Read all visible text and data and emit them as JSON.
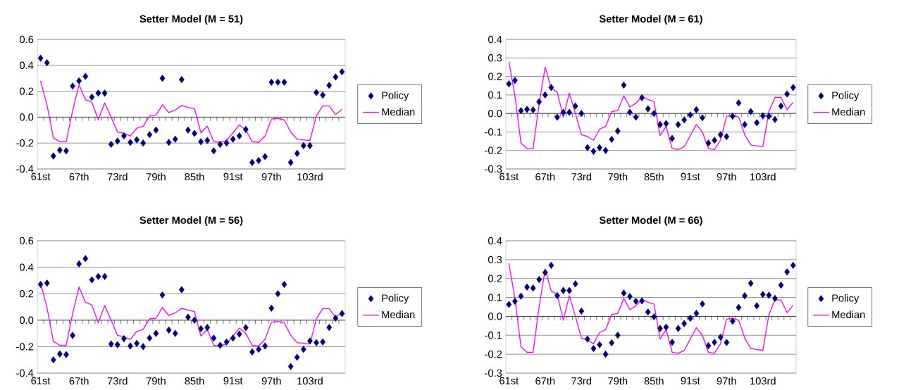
{
  "chart_data": [
    {
      "type": "line",
      "title": "Setter Model (M = 51)",
      "categories": [
        "61st",
        null,
        null,
        null,
        null,
        null,
        "67th",
        null,
        null,
        null,
        null,
        null,
        "73rd",
        null,
        null,
        null,
        null,
        null,
        "79th",
        null,
        null,
        null,
        null,
        null,
        "85th",
        null,
        null,
        null,
        null,
        null,
        "91st",
        null,
        null,
        null,
        null,
        null,
        "97th",
        null,
        null,
        null,
        null,
        null,
        "103rd",
        null,
        null,
        null,
        null,
        null
      ],
      "ylim": [
        -0.4,
        0.6
      ],
      "yticks": [
        {
          "value": -0.4,
          "label": "-0.4"
        },
        {
          "value": -0.2,
          "label": "-0.2"
        },
        {
          "value": 0,
          "label": "0.0"
        },
        {
          "value": 0.2,
          "label": "0.2"
        },
        {
          "value": 0.4,
          "label": "0.4"
        },
        {
          "value": 0.6,
          "label": "0.6"
        }
      ],
      "grid": "y",
      "legend": "right",
      "series": [
        {
          "name": "Policy",
          "type": "scatter",
          "marker": "diamond",
          "color": "#000080",
          "values": [
            0.455,
            0.42,
            -0.3,
            -0.255,
            -0.26,
            0.24,
            0.28,
            0.315,
            0.155,
            0.185,
            0.185,
            -0.21,
            -0.185,
            -0.145,
            -0.195,
            -0.175,
            -0.2,
            -0.135,
            -0.1,
            0.3,
            -0.195,
            -0.17,
            0.29,
            -0.1,
            -0.125,
            -0.19,
            -0.18,
            -0.26,
            -0.21,
            -0.2,
            -0.17,
            -0.145,
            -0.095,
            -0.35,
            -0.335,
            -0.305,
            0.27,
            0.27,
            0.27,
            -0.35,
            -0.28,
            -0.22,
            -0.22,
            0.19,
            0.17,
            0.245,
            0.31,
            0.35
          ]
        },
        {
          "name": "Median",
          "type": "line",
          "marker": "none",
          "color": "#ff00ff",
          "values": [
            0.28,
            0.095,
            -0.16,
            -0.19,
            -0.19,
            0.05,
            0.25,
            0.135,
            0.115,
            -0.02,
            0.11,
            0.0,
            -0.115,
            -0.125,
            -0.145,
            -0.085,
            -0.07,
            0.01,
            0.015,
            0.095,
            0.035,
            0.055,
            0.09,
            0.075,
            0.065,
            -0.12,
            -0.07,
            -0.19,
            -0.195,
            -0.18,
            -0.12,
            -0.06,
            -0.1,
            -0.19,
            -0.195,
            -0.145,
            -0.015,
            -0.01,
            -0.02,
            -0.115,
            -0.17,
            -0.175,
            -0.18,
            0.01,
            0.087,
            0.087,
            0.02,
            0.06
          ]
        }
      ]
    },
    {
      "type": "line",
      "title": "Setter Model (M = 61)",
      "categories": [
        "61st",
        null,
        null,
        null,
        null,
        null,
        "67th",
        null,
        null,
        null,
        null,
        null,
        "73rd",
        null,
        null,
        null,
        null,
        null,
        "79th",
        null,
        null,
        null,
        null,
        null,
        "85th",
        null,
        null,
        null,
        null,
        null,
        "91st",
        null,
        null,
        null,
        null,
        null,
        "97th",
        null,
        null,
        null,
        null,
        null,
        "103rd",
        null,
        null,
        null,
        null,
        null
      ],
      "ylim": [
        -0.3,
        0.4
      ],
      "yticks": [
        {
          "value": -0.3,
          "label": "-0.3"
        },
        {
          "value": -0.2,
          "label": "-0.2"
        },
        {
          "value": -0.1,
          "label": "-0.1"
        },
        {
          "value": 0,
          "label": "0.0"
        },
        {
          "value": 0.1,
          "label": "0.1"
        },
        {
          "value": 0.2,
          "label": "0.2"
        },
        {
          "value": 0.3,
          "label": "0.3"
        },
        {
          "value": 0.4,
          "label": "0.4"
        }
      ],
      "grid": "y",
      "legend": "right",
      "series": [
        {
          "name": "Policy",
          "type": "scatter",
          "marker": "diamond",
          "color": "#000080",
          "values": [
            0.16,
            0.178,
            0.015,
            0.022,
            0.019,
            0.063,
            0.1,
            0.14,
            -0.02,
            0.006,
            0.006,
            0.04,
            0.0,
            -0.185,
            -0.205,
            -0.185,
            -0.2,
            -0.14,
            -0.095,
            0.153,
            0.006,
            -0.02,
            0.085,
            0.025,
            0.0,
            -0.06,
            -0.055,
            -0.135,
            -0.06,
            -0.035,
            -0.008,
            0.02,
            -0.023,
            -0.16,
            -0.145,
            -0.115,
            -0.125,
            -0.015,
            0.057,
            -0.06,
            0.01,
            -0.05,
            -0.013,
            -0.015,
            -0.033,
            0.04,
            0.105,
            0.14
          ]
        },
        {
          "name": "Median",
          "type": "line",
          "marker": "none",
          "color": "#ff00ff",
          "values": [
            0.28,
            0.095,
            -0.16,
            -0.19,
            -0.19,
            0.05,
            0.25,
            0.135,
            0.115,
            -0.02,
            0.11,
            0.0,
            -0.115,
            -0.125,
            -0.145,
            -0.085,
            -0.07,
            0.01,
            0.015,
            0.095,
            0.035,
            0.055,
            0.09,
            0.075,
            0.065,
            -0.12,
            -0.07,
            -0.19,
            -0.195,
            -0.18,
            -0.12,
            -0.06,
            -0.1,
            -0.19,
            -0.195,
            -0.145,
            -0.015,
            -0.01,
            -0.02,
            -0.115,
            -0.17,
            -0.175,
            -0.18,
            0.01,
            0.087,
            0.087,
            0.02,
            0.06
          ]
        }
      ]
    },
    {
      "type": "line",
      "title": "Setter Model (M = 56)",
      "categories": [
        "61st",
        null,
        null,
        null,
        null,
        null,
        "67th",
        null,
        null,
        null,
        null,
        null,
        "73rd",
        null,
        null,
        null,
        null,
        null,
        "79th",
        null,
        null,
        null,
        null,
        null,
        "85th",
        null,
        null,
        null,
        null,
        null,
        "91st",
        null,
        null,
        null,
        null,
        null,
        "97th",
        null,
        null,
        null,
        null,
        null,
        "103rd",
        null,
        null,
        null,
        null,
        null
      ],
      "ylim": [
        -0.4,
        0.6
      ],
      "yticks": [
        {
          "value": -0.4,
          "label": "-0.4"
        },
        {
          "value": -0.2,
          "label": "-0.2"
        },
        {
          "value": 0,
          "label": "0.0"
        },
        {
          "value": 0.2,
          "label": "0.2"
        },
        {
          "value": 0.4,
          "label": "0.4"
        },
        {
          "value": 0.6,
          "label": "0.6"
        }
      ],
      "grid": "y",
      "legend": "right",
      "series": [
        {
          "name": "Policy",
          "type": "scatter",
          "marker": "diamond",
          "color": "#000080",
          "values": [
            0.27,
            0.28,
            -0.3,
            -0.255,
            -0.26,
            -0.115,
            0.425,
            0.465,
            0.305,
            0.33,
            0.33,
            -0.18,
            -0.185,
            -0.14,
            -0.195,
            -0.175,
            -0.2,
            -0.135,
            -0.1,
            0.19,
            -0.075,
            -0.1,
            0.23,
            0.023,
            0.0,
            -0.065,
            -0.055,
            -0.135,
            -0.19,
            -0.165,
            -0.135,
            -0.105,
            -0.057,
            -0.24,
            -0.22,
            -0.195,
            0.09,
            0.2,
            0.27,
            -0.35,
            -0.28,
            -0.22,
            -0.157,
            -0.17,
            -0.165,
            -0.055,
            0.015,
            0.05
          ]
        },
        {
          "name": "Median",
          "type": "line",
          "marker": "none",
          "color": "#ff00ff",
          "values": [
            0.28,
            0.095,
            -0.16,
            -0.19,
            -0.19,
            0.05,
            0.25,
            0.135,
            0.115,
            -0.02,
            0.11,
            0.0,
            -0.115,
            -0.125,
            -0.145,
            -0.085,
            -0.07,
            0.01,
            0.015,
            0.095,
            0.035,
            0.055,
            0.09,
            0.075,
            0.065,
            -0.12,
            -0.07,
            -0.19,
            -0.195,
            -0.18,
            -0.12,
            -0.06,
            -0.1,
            -0.19,
            -0.195,
            -0.145,
            -0.015,
            -0.01,
            -0.02,
            -0.115,
            -0.17,
            -0.175,
            -0.18,
            0.01,
            0.087,
            0.087,
            0.02,
            0.06
          ]
        }
      ]
    },
    {
      "type": "line",
      "title": "Setter Model (M = 66)",
      "categories": [
        "61st",
        null,
        null,
        null,
        null,
        null,
        "67th",
        null,
        null,
        null,
        null,
        null,
        "73rd",
        null,
        null,
        null,
        null,
        null,
        "79th",
        null,
        null,
        null,
        null,
        null,
        "85th",
        null,
        null,
        null,
        null,
        null,
        "91st",
        null,
        null,
        null,
        null,
        null,
        "97th",
        null,
        null,
        null,
        null,
        null,
        "103rd",
        null,
        null,
        null,
        null,
        null
      ],
      "ylim": [
        -0.3,
        0.4
      ],
      "yticks": [
        {
          "value": -0.3,
          "label": "-0.3"
        },
        {
          "value": -0.2,
          "label": "-0.2"
        },
        {
          "value": -0.1,
          "label": "-0.1"
        },
        {
          "value": 0,
          "label": "0.0"
        },
        {
          "value": 0.1,
          "label": "0.1"
        },
        {
          "value": 0.2,
          "label": "0.2"
        },
        {
          "value": 0.3,
          "label": "0.3"
        },
        {
          "value": 0.4,
          "label": "0.4"
        }
      ],
      "grid": "y",
      "legend": "right",
      "series": [
        {
          "name": "Policy",
          "type": "scatter",
          "marker": "diamond",
          "color": "#000080",
          "values": [
            0.063,
            0.08,
            0.107,
            0.155,
            0.15,
            0.195,
            0.232,
            0.27,
            0.11,
            0.137,
            0.137,
            0.172,
            0.028,
            -0.12,
            -0.17,
            -0.15,
            -0.2,
            -0.14,
            -0.1,
            0.123,
            0.105,
            0.08,
            0.082,
            0.023,
            -0.002,
            -0.064,
            -0.057,
            -0.137,
            -0.064,
            -0.038,
            -0.01,
            0.016,
            0.066,
            -0.155,
            -0.137,
            -0.11,
            -0.138,
            -0.025,
            0.047,
            0.109,
            0.175,
            0.056,
            0.116,
            0.112,
            0.095,
            0.165,
            0.235,
            0.27
          ]
        },
        {
          "name": "Median",
          "type": "line",
          "marker": "none",
          "color": "#ff00ff",
          "values": [
            0.28,
            0.095,
            -0.16,
            -0.19,
            -0.19,
            0.05,
            0.25,
            0.135,
            0.115,
            -0.02,
            0.11,
            0.0,
            -0.115,
            -0.125,
            -0.145,
            -0.085,
            -0.07,
            0.01,
            0.015,
            0.095,
            0.035,
            0.055,
            0.09,
            0.075,
            0.065,
            -0.12,
            -0.07,
            -0.19,
            -0.195,
            -0.18,
            -0.12,
            -0.06,
            -0.1,
            -0.19,
            -0.195,
            -0.145,
            -0.015,
            -0.01,
            -0.02,
            -0.115,
            -0.17,
            -0.175,
            -0.18,
            0.01,
            0.087,
            0.087,
            0.02,
            0.06
          ]
        }
      ]
    }
  ]
}
